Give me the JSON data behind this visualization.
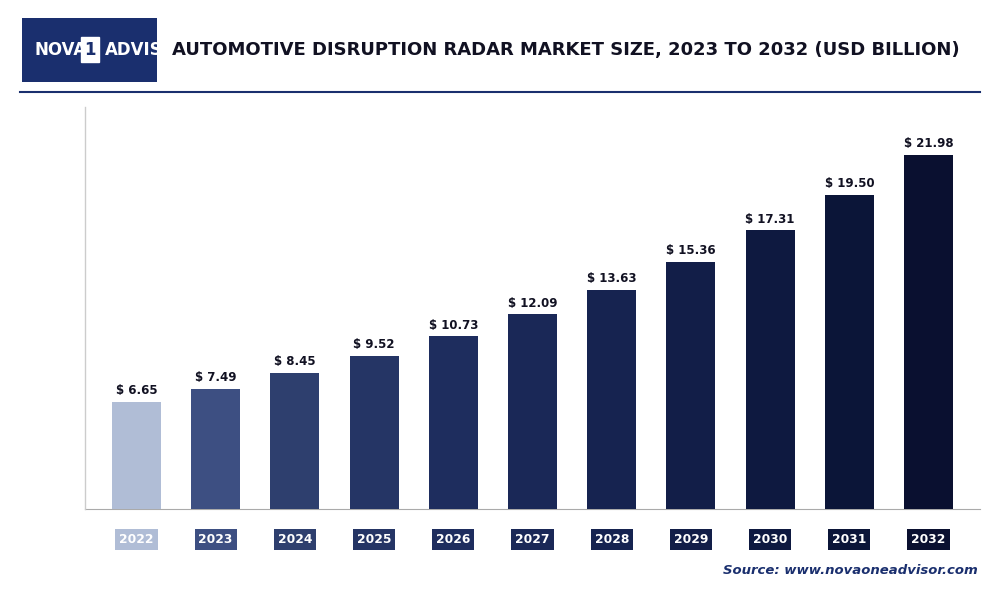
{
  "categories": [
    "2022",
    "2023",
    "2024",
    "2025",
    "2026",
    "2027",
    "2028",
    "2029",
    "2030",
    "2031",
    "2032"
  ],
  "values": [
    6.65,
    7.49,
    8.45,
    9.52,
    10.73,
    12.09,
    13.63,
    15.36,
    17.31,
    19.5,
    21.98
  ],
  "bar_colors": [
    "#b0bdd6",
    "#3d4f82",
    "#2e3f6e",
    "#253565",
    "#1e2d5e",
    "#1a2857",
    "#162350",
    "#121e48",
    "#0e1940",
    "#0b1538",
    "#0a1030"
  ],
  "tick_bg_colors": [
    "#b0bdd6",
    "#3d4f82",
    "#2e3f6e",
    "#253565",
    "#1e2d5e",
    "#1a2857",
    "#162350",
    "#121e48",
    "#0e1940",
    "#0b1538",
    "#0a1030"
  ],
  "title": "AUTOMOTIVE DISRUPTION RADAR MARKET SIZE, 2023 TO 2032 (USD BILLION)",
  "title_fontsize": 13,
  "title_color": "#111122",
  "background_color": "#ffffff",
  "plot_bg_color": "#ffffff",
  "ylim": [
    0,
    25
  ],
  "grid_color": "#d5d5d5",
  "source_text": "Source: www.novaoneadvisor.com",
  "logo_bg_color": "#1a2f6e",
  "logo_text_color": "#ffffff",
  "logo_box_color": "#ffffff",
  "logo_box_text_color": "#1a2f6e",
  "header_line_color": "#1a2f6e",
  "left_border_color": "#cccccc"
}
